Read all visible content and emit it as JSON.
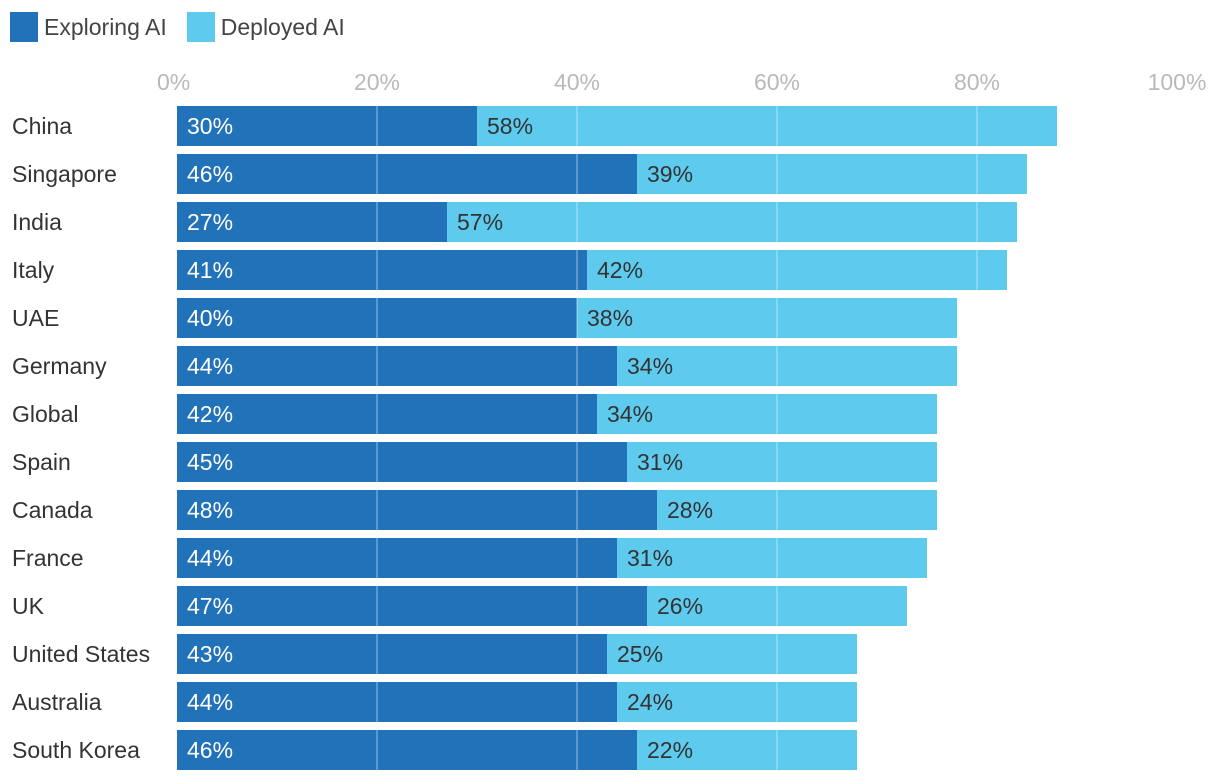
{
  "chart_data": {
    "type": "bar",
    "orientation": "horizontal",
    "stacked": true,
    "categories": [
      "China",
      "Singapore",
      "India",
      "Italy",
      "UAE",
      "Germany",
      "Global",
      "Spain",
      "Canada",
      "France",
      "UK",
      "United States",
      "Australia",
      "South Korea"
    ],
    "series": [
      {
        "name": "Exploring AI",
        "color": "#2272BA",
        "values": [
          30,
          46,
          27,
          41,
          40,
          44,
          42,
          45,
          48,
          44,
          47,
          43,
          44,
          46
        ],
        "labels": [
          "30%",
          "46%",
          "27%",
          "41%",
          "40%",
          "44%",
          "42%",
          "45%",
          "48%",
          "44%",
          "47%",
          "43%",
          "44%",
          "46%"
        ]
      },
      {
        "name": "Deployed AI",
        "color": "#5ECBEE",
        "values": [
          58,
          39,
          57,
          42,
          38,
          34,
          34,
          31,
          28,
          31,
          26,
          25,
          24,
          22
        ],
        "labels": [
          "58%",
          "39%",
          "57%",
          "42%",
          "38%",
          "34%",
          "34%",
          "31%",
          "28%",
          "31%",
          "26%",
          "25%",
          "24%",
          "22%"
        ]
      }
    ],
    "xlim": [
      0,
      100
    ],
    "xticks": [
      "0%",
      "20%",
      "40%",
      "60%",
      "80%",
      "100%"
    ],
    "xaxis_position": "top",
    "grid": true,
    "legend_position": "top-left",
    "title": "",
    "xlabel": "",
    "ylabel": ""
  }
}
